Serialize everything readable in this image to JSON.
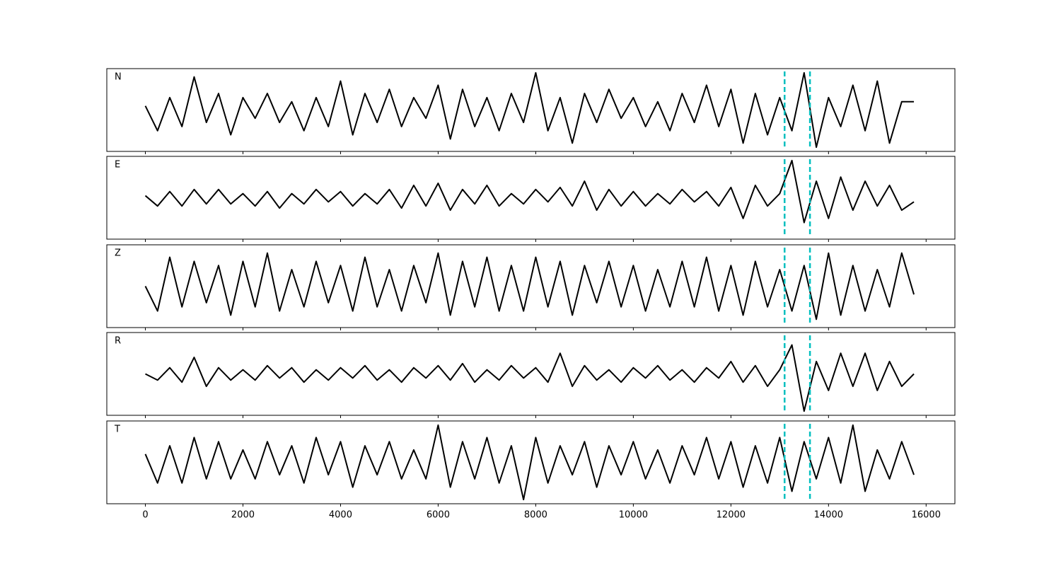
{
  "chart_data": [
    {
      "type": "line",
      "label": "N",
      "color": "#000000",
      "xlim": [
        -790,
        16590
      ],
      "ylim": [
        -1,
        1
      ],
      "xticks": [
        0,
        2000,
        4000,
        6000,
        8000,
        10000,
        12000,
        14000,
        16000
      ],
      "vlines": [
        13100,
        13620
      ],
      "vline_color": "#00bfbf",
      "x": [
        0,
        250,
        500,
        750,
        1000,
        1250,
        1500,
        1750,
        2000,
        2250,
        2500,
        2750,
        3000,
        3250,
        3500,
        3750,
        4000,
        4250,
        4500,
        4750,
        5000,
        5250,
        5500,
        5750,
        6000,
        6250,
        6500,
        6750,
        7000,
        7250,
        7500,
        7750,
        8000,
        8250,
        8500,
        8750,
        9000,
        9250,
        9500,
        9750,
        10000,
        10250,
        10500,
        10750,
        11000,
        11250,
        11500,
        11750,
        12000,
        12250,
        12500,
        12750,
        13000,
        13250,
        13500,
        13750,
        14000,
        14250,
        14500,
        14750,
        15000,
        15250,
        15500,
        15750
      ],
      "values": [
        0.1,
        -0.5,
        0.3,
        -0.4,
        0.8,
        -0.3,
        0.4,
        -0.6,
        0.3,
        -0.2,
        0.4,
        -0.3,
        0.2,
        -0.5,
        0.3,
        -0.4,
        0.7,
        -0.6,
        0.4,
        -0.3,
        0.5,
        -0.4,
        0.3,
        -0.2,
        0.6,
        -0.7,
        0.5,
        -0.4,
        0.3,
        -0.5,
        0.4,
        -0.3,
        0.9,
        -0.5,
        0.3,
        -0.8,
        0.4,
        -0.3,
        0.5,
        -0.2,
        0.3,
        -0.4,
        0.2,
        -0.5,
        0.4,
        -0.3,
        0.6,
        -0.4,
        0.5,
        -0.8,
        0.4,
        -0.6,
        0.3,
        -0.5,
        0.9,
        -0.9,
        0.3,
        -0.4,
        0.6,
        -0.5,
        0.7,
        -0.8,
        0.2,
        0.2
      ]
    },
    {
      "type": "line",
      "label": "E",
      "color": "#000000",
      "xlim": [
        -790,
        16590
      ],
      "ylim": [
        -1,
        1
      ],
      "xticks": [
        0,
        2000,
        4000,
        6000,
        8000,
        10000,
        12000,
        14000,
        16000
      ],
      "vlines": [
        13100,
        13620
      ],
      "vline_color": "#00bfbf",
      "x": [
        0,
        250,
        500,
        750,
        1000,
        1250,
        1500,
        1750,
        2000,
        2250,
        2500,
        2750,
        3000,
        3250,
        3500,
        3750,
        4000,
        4250,
        4500,
        4750,
        5000,
        5250,
        5500,
        5750,
        6000,
        6250,
        6500,
        6750,
        7000,
        7250,
        7500,
        7750,
        8000,
        8250,
        8500,
        8750,
        9000,
        9250,
        9500,
        9750,
        10000,
        10250,
        10500,
        10750,
        11000,
        11250,
        11500,
        11750,
        12000,
        12250,
        12500,
        12750,
        13000,
        13250,
        13500,
        13750,
        14000,
        14250,
        14500,
        14750,
        15000,
        15250,
        15500,
        15750
      ],
      "values": [
        0.05,
        -0.2,
        0.15,
        -0.2,
        0.2,
        -0.15,
        0.2,
        -0.15,
        0.1,
        -0.2,
        0.15,
        -0.25,
        0.1,
        -0.15,
        0.2,
        -0.1,
        0.15,
        -0.2,
        0.1,
        -0.15,
        0.2,
        -0.25,
        0.3,
        -0.2,
        0.35,
        -0.3,
        0.2,
        -0.15,
        0.3,
        -0.2,
        0.1,
        -0.15,
        0.2,
        -0.1,
        0.25,
        -0.2,
        0.4,
        -0.3,
        0.2,
        -0.2,
        0.15,
        -0.2,
        0.1,
        -0.15,
        0.2,
        -0.1,
        0.15,
        -0.2,
        0.25,
        -0.5,
        0.3,
        -0.2,
        0.1,
        0.9,
        -0.6,
        0.4,
        -0.5,
        0.5,
        -0.3,
        0.4,
        -0.2,
        0.3,
        -0.3,
        -0.1
      ]
    },
    {
      "type": "line",
      "label": "Z",
      "color": "#000000",
      "xlim": [
        -790,
        16590
      ],
      "ylim": [
        -1,
        1
      ],
      "xticks": [
        0,
        2000,
        4000,
        6000,
        8000,
        10000,
        12000,
        14000,
        16000
      ],
      "vlines": [
        13100,
        13620
      ],
      "vline_color": "#00bfbf",
      "x": [
        0,
        250,
        500,
        750,
        1000,
        1250,
        1500,
        1750,
        2000,
        2250,
        2500,
        2750,
        3000,
        3250,
        3500,
        3750,
        4000,
        4250,
        4500,
        4750,
        5000,
        5250,
        5500,
        5750,
        6000,
        6250,
        6500,
        6750,
        7000,
        7250,
        7500,
        7750,
        8000,
        8250,
        8500,
        8750,
        9000,
        9250,
        9500,
        9750,
        10000,
        10250,
        10500,
        10750,
        11000,
        11250,
        11500,
        11750,
        12000,
        12250,
        12500,
        12750,
        13000,
        13250,
        13500,
        13750,
        14000,
        14250,
        14500,
        14750,
        15000,
        15250,
        15500,
        15750
      ],
      "values": [
        0.0,
        -0.6,
        0.7,
        -0.5,
        0.6,
        -0.4,
        0.5,
        -0.7,
        0.6,
        -0.5,
        0.8,
        -0.6,
        0.4,
        -0.5,
        0.6,
        -0.4,
        0.5,
        -0.6,
        0.7,
        -0.5,
        0.4,
        -0.6,
        0.5,
        -0.4,
        0.8,
        -0.7,
        0.6,
        -0.5,
        0.7,
        -0.6,
        0.5,
        -0.6,
        0.7,
        -0.5,
        0.6,
        -0.7,
        0.5,
        -0.4,
        0.6,
        -0.5,
        0.5,
        -0.6,
        0.4,
        -0.5,
        0.6,
        -0.5,
        0.7,
        -0.6,
        0.5,
        -0.7,
        0.6,
        -0.5,
        0.4,
        -0.6,
        0.5,
        -0.8,
        0.8,
        -0.7,
        0.5,
        -0.6,
        0.4,
        -0.5,
        0.8,
        -0.2
      ]
    },
    {
      "type": "line",
      "label": "R",
      "color": "#000000",
      "xlim": [
        -790,
        16590
      ],
      "ylim": [
        -1,
        1
      ],
      "xticks": [
        0,
        2000,
        4000,
        6000,
        8000,
        10000,
        12000,
        14000,
        16000
      ],
      "vlines": [
        13100,
        13620
      ],
      "vline_color": "#00bfbf",
      "x": [
        0,
        250,
        500,
        750,
        1000,
        1250,
        1500,
        1750,
        2000,
        2250,
        2500,
        2750,
        3000,
        3250,
        3500,
        3750,
        4000,
        4250,
        4500,
        4750,
        5000,
        5250,
        5500,
        5750,
        6000,
        6250,
        6500,
        6750,
        7000,
        7250,
        7500,
        7750,
        8000,
        8250,
        8500,
        8750,
        9000,
        9250,
        9500,
        9750,
        10000,
        10250,
        10500,
        10750,
        11000,
        11250,
        11500,
        11750,
        12000,
        12250,
        12500,
        12750,
        13000,
        13250,
        13500,
        13750,
        14000,
        14250,
        14500,
        14750,
        15000,
        15250,
        15500,
        15750
      ],
      "values": [
        0.0,
        -0.15,
        0.15,
        -0.2,
        0.4,
        -0.3,
        0.15,
        -0.15,
        0.1,
        -0.15,
        0.2,
        -0.1,
        0.15,
        -0.2,
        0.1,
        -0.15,
        0.15,
        -0.1,
        0.2,
        -0.15,
        0.1,
        -0.2,
        0.15,
        -0.1,
        0.2,
        -0.15,
        0.25,
        -0.2,
        0.1,
        -0.15,
        0.2,
        -0.1,
        0.15,
        -0.2,
        0.5,
        -0.3,
        0.2,
        -0.15,
        0.1,
        -0.2,
        0.15,
        -0.1,
        0.2,
        -0.15,
        0.1,
        -0.2,
        0.15,
        -0.1,
        0.3,
        -0.2,
        0.2,
        -0.3,
        0.1,
        0.7,
        -0.9,
        0.3,
        -0.4,
        0.5,
        -0.3,
        0.5,
        -0.4,
        0.3,
        -0.3,
        0.0
      ]
    },
    {
      "type": "line",
      "label": "T",
      "color": "#000000",
      "xlim": [
        -790,
        16590
      ],
      "ylim": [
        -1,
        1
      ],
      "xticks": [
        0,
        2000,
        4000,
        6000,
        8000,
        10000,
        12000,
        14000,
        16000
      ],
      "vlines": [
        13100,
        13620
      ],
      "vline_color": "#00bfbf",
      "x": [
        0,
        250,
        500,
        750,
        1000,
        1250,
        1500,
        1750,
        2000,
        2250,
        2500,
        2750,
        3000,
        3250,
        3500,
        3750,
        4000,
        4250,
        4500,
        4750,
        5000,
        5250,
        5500,
        5750,
        6000,
        6250,
        6500,
        6750,
        7000,
        7250,
        7500,
        7750,
        8000,
        8250,
        8500,
        8750,
        9000,
        9250,
        9500,
        9750,
        10000,
        10250,
        10500,
        10750,
        11000,
        11250,
        11500,
        11750,
        12000,
        12250,
        12500,
        12750,
        13000,
        13250,
        13500,
        13750,
        14000,
        14250,
        14500,
        14750,
        15000,
        15250,
        15500,
        15750
      ],
      "values": [
        0.2,
        -0.5,
        0.4,
        -0.5,
        0.6,
        -0.4,
        0.5,
        -0.4,
        0.3,
        -0.4,
        0.5,
        -0.3,
        0.4,
        -0.5,
        0.6,
        -0.3,
        0.5,
        -0.6,
        0.4,
        -0.3,
        0.5,
        -0.4,
        0.3,
        -0.4,
        0.9,
        -0.6,
        0.5,
        -0.4,
        0.6,
        -0.5,
        0.4,
        -0.9,
        0.6,
        -0.5,
        0.4,
        -0.3,
        0.5,
        -0.6,
        0.4,
        -0.3,
        0.5,
        -0.4,
        0.3,
        -0.5,
        0.4,
        -0.3,
        0.6,
        -0.4,
        0.5,
        -0.6,
        0.4,
        -0.5,
        0.6,
        -0.7,
        0.5,
        -0.4,
        0.6,
        -0.5,
        0.9,
        -0.7,
        0.3,
        -0.4,
        0.5,
        -0.3
      ]
    }
  ]
}
